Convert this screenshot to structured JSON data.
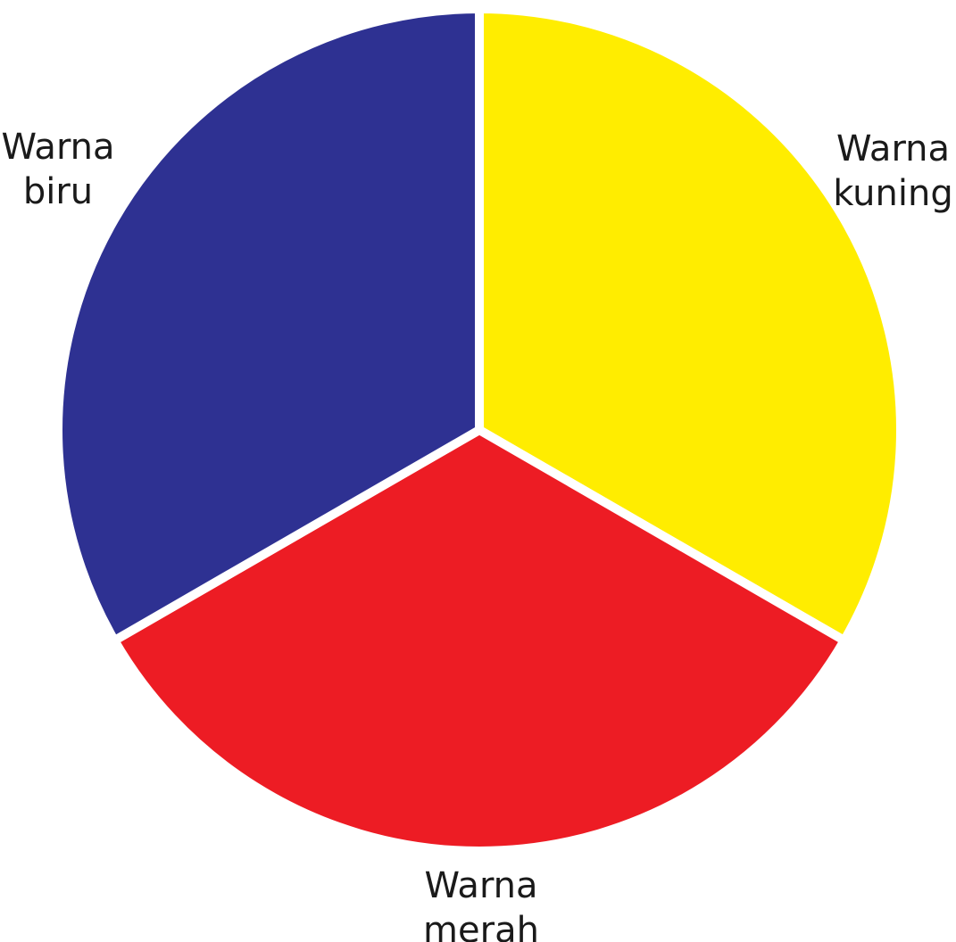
{
  "chart_data": {
    "type": "pie",
    "title": "",
    "slices": [
      {
        "key": "kuning",
        "line1": "Warna",
        "line2": "kuning",
        "value": 1,
        "color": "#FFED00"
      },
      {
        "key": "merah",
        "line1": "Warna",
        "line2": "merah",
        "value": 1,
        "color": "#ED1C24"
      },
      {
        "key": "biru",
        "line1": "Warna",
        "line2": "biru",
        "value": 1,
        "color": "#2E3192"
      }
    ],
    "separator_color": "#FFFFFF"
  }
}
